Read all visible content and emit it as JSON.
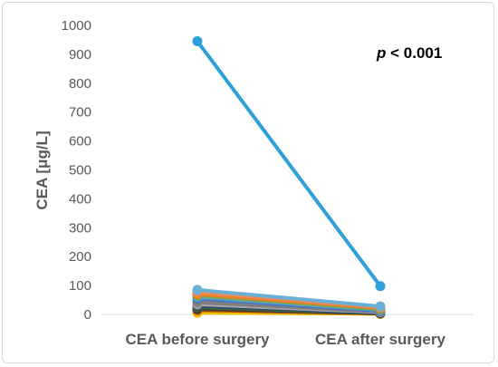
{
  "chart_data": {
    "type": "line",
    "title": "",
    "ylabel": "CEA [μg/L]",
    "xlabel": "",
    "categories": [
      "CEA before surgery",
      "CEA after surgery"
    ],
    "ylim": [
      0,
      1000
    ],
    "yticks": [
      "0",
      "100",
      "200",
      "300",
      "400",
      "500",
      "600",
      "700",
      "800",
      "900",
      "1000"
    ],
    "grid": false,
    "annotation": {
      "italic": "p",
      "rest": " < 0.001"
    },
    "series": [
      {
        "values": [
          945,
          98
        ],
        "color": "#2e9fd8"
      },
      {
        "values": [
          85,
          28
        ],
        "color": "#6baed6"
      },
      {
        "values": [
          78,
          25
        ],
        "color": "#f08c50"
      },
      {
        "values": [
          70,
          22
        ],
        "color": "#ed7d31"
      },
      {
        "values": [
          65,
          18
        ],
        "color": "#70ad47"
      },
      {
        "values": [
          60,
          15
        ],
        "color": "#5b9bd5"
      },
      {
        "values": [
          55,
          12
        ],
        "color": "#4472c4"
      },
      {
        "values": [
          42,
          10
        ],
        "color": "#7f7f7f"
      },
      {
        "values": [
          35,
          8
        ],
        "color": "#a5a5a5"
      },
      {
        "values": [
          30,
          6
        ],
        "color": "#264478"
      },
      {
        "values": [
          25,
          5
        ],
        "color": "#43682b"
      },
      {
        "values": [
          20,
          4
        ],
        "color": "#404040"
      },
      {
        "values": [
          15,
          3
        ],
        "color": "#9e480e"
      },
      {
        "values": [
          10,
          2
        ],
        "color": "#ffc000"
      },
      {
        "values": [
          6,
          2
        ],
        "color": "#e6b800"
      }
    ]
  }
}
